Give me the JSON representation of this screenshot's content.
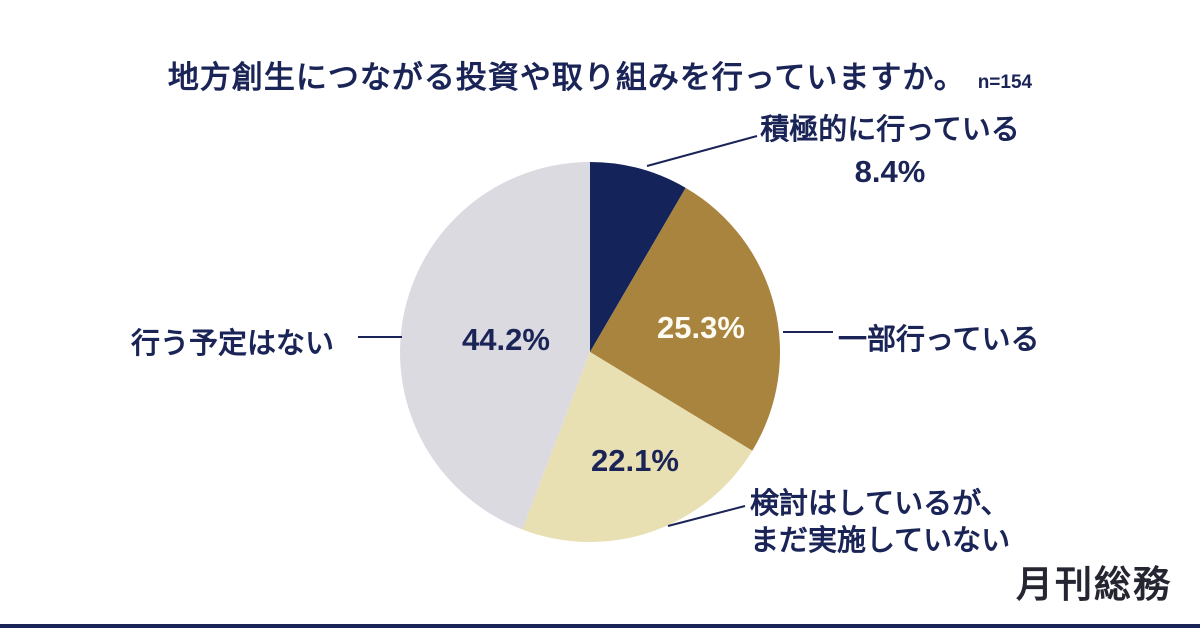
{
  "title": "地方創生につながる投資や取り組みを行っていますか。",
  "sample_size": "n=154",
  "logo": "月刊総務",
  "colors": {
    "navy": "#1a2456",
    "slice_navy": "#15235b",
    "slice_brown": "#a8843e",
    "slice_beige": "#e8dfb2",
    "slice_gray": "#dbdae0",
    "value_on_brown": "#fdfbf2",
    "background": "#ffffff"
  },
  "labels": {
    "considering_line1": "検討はしているが、",
    "considering_line2": "まだ実施していない"
  },
  "chart_data": {
    "type": "pie",
    "title": "地方創生につながる投資や取り組みを行っていますか。",
    "n": 154,
    "start_angle_deg": 0,
    "direction": "clockwise",
    "legend": "none",
    "label_style": "outside-with-leader-lines, percentages inside slices",
    "slices": [
      {
        "label": "積極的に行っている",
        "value": 8.4,
        "display": "8.4%",
        "color": "#15235b"
      },
      {
        "label": "一部行っている",
        "value": 25.3,
        "display": "25.3%",
        "color": "#a8843e"
      },
      {
        "label": "検討はしているが、まだ実施していない",
        "value": 22.1,
        "display": "22.1%",
        "color": "#e8dfb2"
      },
      {
        "label": "行う予定はない",
        "value": 44.2,
        "display": "44.2%",
        "color": "#dbdae0"
      }
    ]
  }
}
